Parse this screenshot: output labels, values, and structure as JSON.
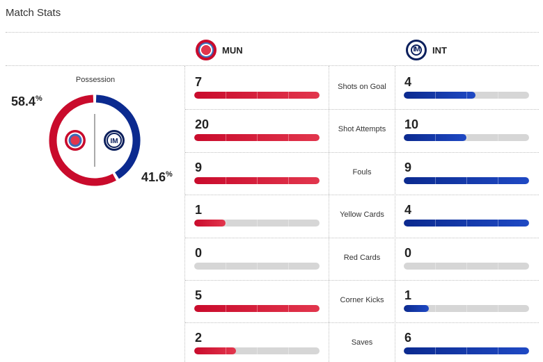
{
  "page": {
    "title": "Match Stats"
  },
  "teams": {
    "home": {
      "abbr": "MUN",
      "color": "#c90b2c",
      "icon": "bayern-crest-icon"
    },
    "away": {
      "abbr": "INT",
      "color": "#0b2a8f",
      "icon": "inter-crest-icon"
    }
  },
  "possession": {
    "label": "Possession",
    "home_value": "58.4",
    "away_value": "41.6",
    "unit": "%",
    "home_fraction": 0.584,
    "away_fraction": 0.416
  },
  "stats": [
    {
      "label": "Shots on Goal",
      "home": "7",
      "away": "4",
      "home_fill": 1.0,
      "away_fill": 0.571
    },
    {
      "label": "Shot Attempts",
      "home": "20",
      "away": "10",
      "home_fill": 1.0,
      "away_fill": 0.5
    },
    {
      "label": "Fouls",
      "home": "9",
      "away": "9",
      "home_fill": 1.0,
      "away_fill": 1.0
    },
    {
      "label": "Yellow Cards",
      "home": "1",
      "away": "4",
      "home_fill": 0.25,
      "away_fill": 1.0
    },
    {
      "label": "Red Cards",
      "home": "0",
      "away": "0",
      "home_fill": 0.0,
      "away_fill": 0.0
    },
    {
      "label": "Corner Kicks",
      "home": "5",
      "away": "1",
      "home_fill": 1.0,
      "away_fill": 0.2
    },
    {
      "label": "Saves",
      "home": "2",
      "away": "6",
      "home_fill": 0.333,
      "away_fill": 1.0
    }
  ]
}
